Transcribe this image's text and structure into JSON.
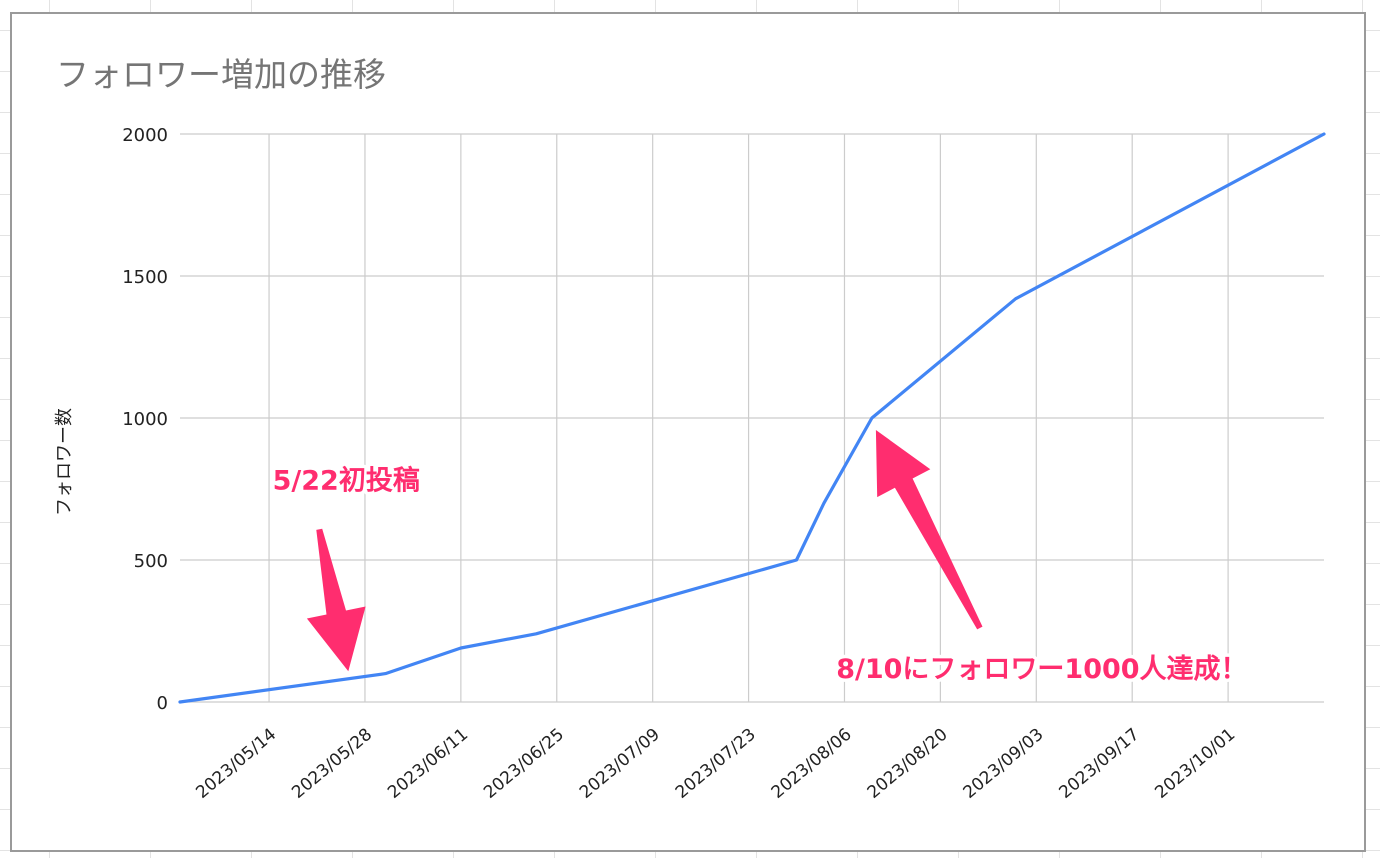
{
  "chart_data": {
    "type": "line",
    "title": "フォロワー増加の推移",
    "xlabel": "",
    "ylabel": "フォロワー数",
    "ylim": [
      0,
      2000
    ],
    "yticks": [
      0,
      500,
      1000,
      1500,
      2000
    ],
    "xlim": [
      "2023/05/01",
      "2023/10/15"
    ],
    "x_tick_labels": [
      "2023/05/14",
      "2023/05/28",
      "2023/06/11",
      "2023/06/25",
      "2023/07/09",
      "2023/07/23",
      "2023/08/06",
      "2023/08/20",
      "2023/09/03",
      "2023/09/17",
      "2023/10/01"
    ],
    "grid": true,
    "legend": "none",
    "series": [
      {
        "color": "#4285f4",
        "x": [
          "2023/05/01",
          "2023/05/31",
          "2023/06/11",
          "2023/06/22",
          "2023/07/30",
          "2023/08/03",
          "2023/08/10",
          "2023/08/31",
          "2023/10/15"
        ],
        "y": [
          0,
          100,
          190,
          240,
          500,
          700,
          1000,
          1420,
          2000
        ]
      }
    ],
    "annotations": [
      {
        "text": "5/22初投稿",
        "x": "2023/05/26",
        "y": 80,
        "color": "#ff2d6f"
      },
      {
        "text": "8/10にフォロワー1000人達成！",
        "x": "2023/08/10",
        "y": 1000,
        "color": "#ff2d6f"
      }
    ]
  }
}
